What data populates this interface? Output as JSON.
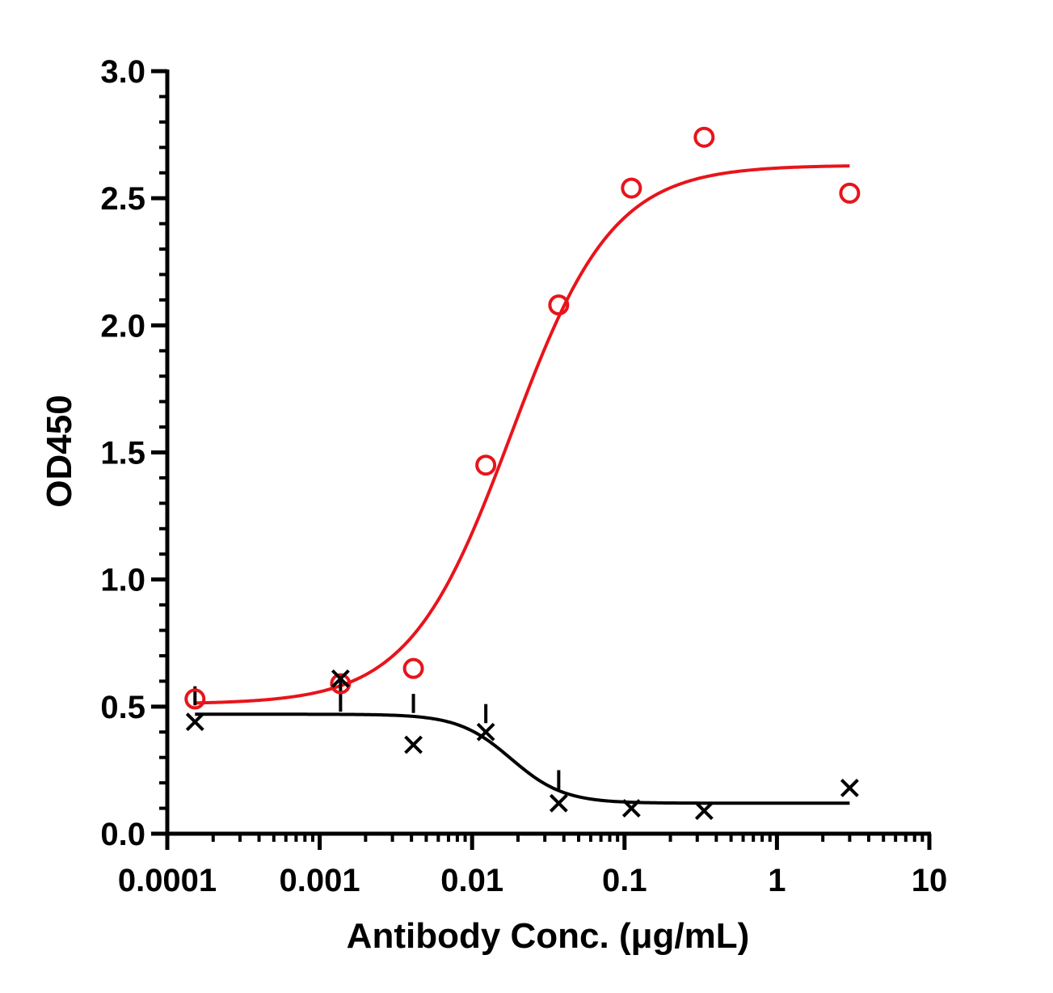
{
  "chart_data": {
    "type": "scatter",
    "xlabel": "Antibody Conc. (μg/mL)",
    "ylabel": "OD450",
    "x_scale": "log",
    "xlim": [
      0.0001,
      10
    ],
    "ylim": [
      0,
      3.0
    ],
    "x_ticks": [
      0.0001,
      0.001,
      0.01,
      0.1,
      1,
      10
    ],
    "x_tick_labels": [
      "0.0001",
      "0.001",
      "0.01",
      "0.1",
      "1",
      "10"
    ],
    "y_ticks": [
      0,
      0.5,
      1.0,
      1.5,
      2.0,
      2.5,
      3.0
    ],
    "y_tick_labels": [
      "0.0",
      "0.5",
      "1.0",
      "1.5",
      "2.0",
      "2.5",
      "3.0"
    ],
    "grid": false,
    "legend": "none",
    "series": [
      {
        "color": "#e8141b",
        "marker": "open-circle",
        "x": [
          0.000152,
          0.00137,
          0.00412,
          0.0123,
          0.037,
          0.111,
          0.333,
          3.0
        ],
        "y": [
          0.53,
          0.59,
          0.65,
          1.45,
          2.08,
          2.54,
          2.74,
          2.52
        ],
        "fit": {
          "model": "4PL",
          "bottom": 0.51,
          "top": 2.63,
          "ec50": 0.018,
          "hill": 1.3,
          "x_range": [
            0.000152,
            3.0
          ]
        }
      },
      {
        "color": "#000000",
        "marker": "x",
        "x": [
          0.000152,
          0.00137,
          0.00412,
          0.0123,
          0.037,
          0.111,
          0.333,
          3.0
        ],
        "y": [
          0.44,
          0.61,
          0.35,
          0.4,
          0.12,
          0.1,
          0.09,
          0.18
        ],
        "error_upper": [
          0.58,
          0.48,
          0.55,
          0.51,
          0.25,
          null,
          null,
          null
        ],
        "fit": {
          "model": "4PL",
          "bottom": 0.12,
          "top": 0.47,
          "ec50": 0.018,
          "hill": -2.5,
          "x_range": [
            0.000152,
            3.0
          ]
        }
      }
    ]
  }
}
